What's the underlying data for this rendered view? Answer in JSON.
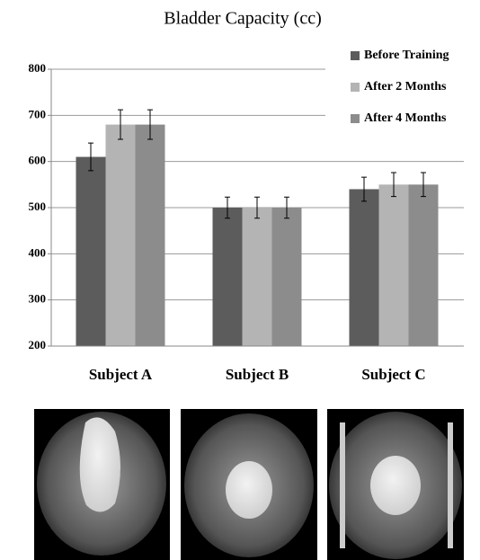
{
  "chart_data": {
    "type": "bar",
    "title": "Bladder Capacity (cc)",
    "categories": [
      "Subject A",
      "Subject B",
      "Subject C"
    ],
    "series": [
      {
        "name": "Before Training",
        "color": "#5c5c5c",
        "values": [
          610,
          500,
          540
        ],
        "errors": [
          30,
          23,
          26
        ]
      },
      {
        "name": "After 2 Months",
        "color": "#b4b4b4",
        "values": [
          680,
          500,
          550
        ],
        "errors": [
          32,
          23,
          26
        ]
      },
      {
        "name": "After 4 Months",
        "color": "#8c8c8c",
        "values": [
          680,
          500,
          550
        ],
        "errors": [
          32,
          23,
          26
        ]
      }
    ],
    "ylim": [
      200,
      800
    ],
    "yticks": [
      200,
      300,
      400,
      500,
      600,
      700,
      800
    ],
    "grid": true,
    "legend": "top-right"
  }
}
